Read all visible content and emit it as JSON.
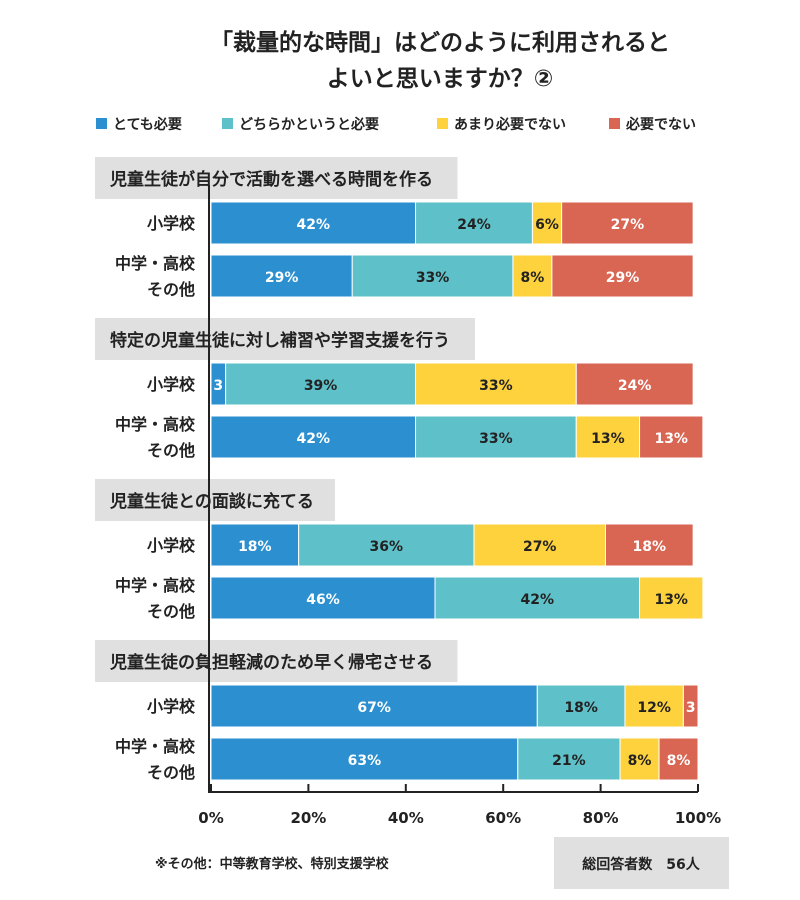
{
  "chart_data": {
    "type": "bar",
    "orientation": "horizontal",
    "stacked": true,
    "title_lines": [
      "「裁量的な時間」はどのように利用されると",
      "よいと思いますか？②"
    ],
    "legend": [
      {
        "name": "とても必要",
        "color": "#2b8fd0"
      },
      {
        "name": "どちらかというと必要",
        "color": "#5ec0c8"
      },
      {
        "name": "あまり必要でない",
        "color": "#fed23c"
      },
      {
        "name": "必要でない",
        "color": "#d96553"
      }
    ],
    "groups": [
      {
        "label": "児童生徒が自分で活動を選べる時間を作る",
        "rows": [
          {
            "label_lines": [
              "小学校"
            ],
            "values": [
              42,
              24,
              6,
              27
            ],
            "labels": [
              "42%",
              "24%",
              "6%",
              "27%"
            ]
          },
          {
            "label_lines": [
              "中学・高校",
              "その他"
            ],
            "values": [
              29,
              33,
              8,
              29
            ],
            "labels": [
              "29%",
              "33%",
              "8%",
              "29%"
            ]
          }
        ]
      },
      {
        "label": "特定の児童生徒に対し補習や学習支援を行う",
        "rows": [
          {
            "label_lines": [
              "小学校"
            ],
            "values": [
              3,
              39,
              33,
              24
            ],
            "labels": [
              "3",
              "39%",
              "33%",
              "24%"
            ]
          },
          {
            "label_lines": [
              "中学・高校",
              "その他"
            ],
            "values": [
              42,
              33,
              13,
              13
            ],
            "labels": [
              "42%",
              "33%",
              "13%",
              "13%"
            ]
          }
        ]
      },
      {
        "label": "児童生徒との面談に充てる",
        "rows": [
          {
            "label_lines": [
              "小学校"
            ],
            "values": [
              18,
              36,
              27,
              18
            ],
            "labels": [
              "18%",
              "36%",
              "27%",
              "18%"
            ]
          },
          {
            "label_lines": [
              "中学・高校",
              "その他"
            ],
            "values": [
              46,
              42,
              13,
              0
            ],
            "labels": [
              "46%",
              "42%",
              "13%",
              ""
            ]
          }
        ]
      },
      {
        "label": "児童生徒の負担軽減のため早く帰宅させる",
        "rows": [
          {
            "label_lines": [
              "小学校"
            ],
            "values": [
              67,
              18,
              12,
              3
            ],
            "labels": [
              "67%",
              "18%",
              "12%",
              "3"
            ]
          },
          {
            "label_lines": [
              "中学・高校",
              "その他"
            ],
            "values": [
              63,
              21,
              8,
              8
            ],
            "labels": [
              "63%",
              "21%",
              "8%",
              "8%"
            ]
          }
        ]
      }
    ],
    "x_ticks": [
      "0%",
      "20%",
      "40%",
      "60%",
      "80%",
      "100%"
    ],
    "xlim": [
      0,
      100
    ],
    "note": "※その他：中等教育学校、特別支援学校",
    "total": "総回答者数　56人"
  }
}
